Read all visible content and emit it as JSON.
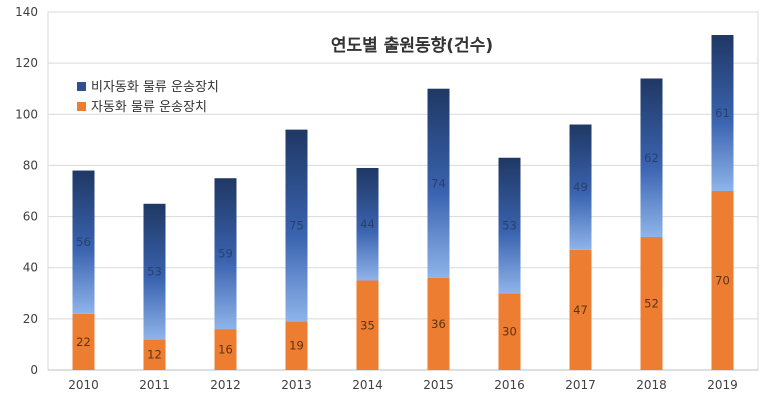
{
  "chart_data": {
    "type": "bar",
    "stacked": true,
    "title": "연도별 출원동향(건수)",
    "categories": [
      "2010",
      "2011",
      "2012",
      "2013",
      "2014",
      "2015",
      "2016",
      "2017",
      "2018",
      "2019"
    ],
    "series": [
      {
        "name": "자동화 물류 운송장치",
        "values": [
          22,
          12,
          16,
          19,
          35,
          36,
          30,
          47,
          52,
          70
        ],
        "color": "#ed7d31"
      },
      {
        "name": "비자동화 물류 운송장치",
        "values": [
          56,
          53,
          59,
          75,
          44,
          74,
          53,
          49,
          62,
          61
        ],
        "color": "#203864"
      }
    ],
    "ylim": [
      0,
      140
    ],
    "yticks": [
      0,
      20,
      40,
      60,
      80,
      100,
      120,
      140
    ],
    "grid": true,
    "legend": "top-left",
    "xlabel": "",
    "ylabel": ""
  }
}
